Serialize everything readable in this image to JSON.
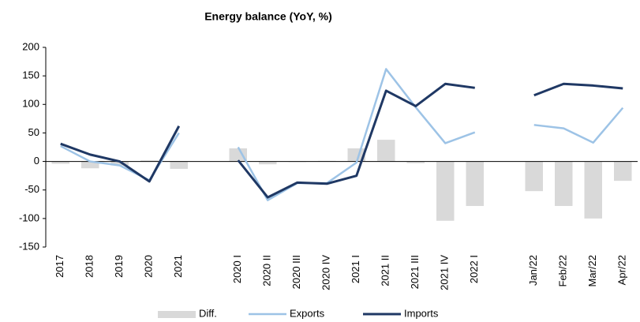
{
  "chart_data": {
    "type": "bar_line",
    "title": "Energy balance (YoY, %)",
    "categories": [
      "2017",
      "2018",
      "2019",
      "2020",
      "2021",
      null,
      "2020 I",
      "2020 II",
      "2020 III",
      "2020 IV",
      "2021 I",
      "2021 II",
      "2021 III",
      "2021 IV",
      "2022 I",
      null,
      "Jan/22",
      "Feb/22",
      "Mar/22",
      "Apr/22"
    ],
    "series": [
      {
        "name": "Diff.",
        "type": "bar",
        "color": "#d9d9d9",
        "values": [
          -4,
          -12,
          -7,
          2,
          -13,
          null,
          23,
          -5,
          -1,
          1,
          23,
          38,
          -3,
          -104,
          -78,
          null,
          -52,
          -78,
          -100,
          -34
        ]
      },
      {
        "name": "Exports",
        "type": "line",
        "color": "#9dc3e6",
        "values": [
          27,
          0,
          -7,
          -33,
          50,
          null,
          25,
          -68,
          -38,
          -38,
          -2,
          162,
          95,
          32,
          51,
          null,
          64,
          58,
          33,
          94
        ]
      },
      {
        "name": "Imports",
        "type": "line",
        "color": "#1f3864",
        "values": [
          31,
          12,
          0,
          -35,
          62,
          null,
          2,
          -63,
          -37,
          -39,
          -25,
          124,
          97,
          136,
          129,
          null,
          116,
          136,
          133,
          128
        ]
      }
    ],
    "ylim": [
      -150,
      200
    ],
    "yticks": [
      -150,
      -100,
      -50,
      0,
      50,
      100,
      150,
      200
    ],
    "legend": "bottom"
  }
}
